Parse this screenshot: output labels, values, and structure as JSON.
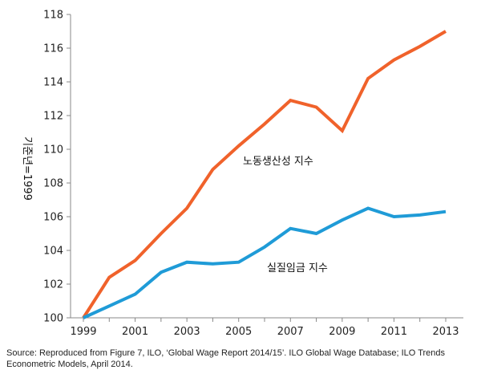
{
  "chart_data": {
    "type": "line",
    "title": "",
    "xlabel": "",
    "ylabel": "기준년=1999",
    "x": [
      1999,
      2000,
      2001,
      2002,
      2003,
      2004,
      2005,
      2006,
      2007,
      2008,
      2009,
      2010,
      2011,
      2012,
      2013
    ],
    "xticks": [
      "1999",
      "2001",
      "2003",
      "2005",
      "2007",
      "2009",
      "2011",
      "2013"
    ],
    "yticks": [
      "100",
      "102",
      "104",
      "106",
      "108",
      "110",
      "112",
      "114",
      "116",
      "118"
    ],
    "ylim": [
      100,
      118
    ],
    "grid": false,
    "series": [
      {
        "name": "노동생산성 지수",
        "color": "#F0622B",
        "values": [
          100.0,
          102.4,
          103.4,
          105.0,
          106.5,
          108.8,
          110.2,
          111.5,
          112.9,
          112.5,
          111.1,
          114.2,
          115.3,
          116.1,
          117.0
        ]
      },
      {
        "name": "실질임금 지수",
        "color": "#1F9BD7",
        "values": [
          100.0,
          100.7,
          101.4,
          102.7,
          103.3,
          103.2,
          103.3,
          104.2,
          105.3,
          105.0,
          105.8,
          106.5,
          106.0,
          106.1,
          106.3
        ]
      }
    ]
  },
  "source_text": "Source: Reproduced from Figure 7, ILO, ‘Global Wage Report 2014/15’. ILO Global Wage Database; ILO Trends Econometric Models, April 2014."
}
